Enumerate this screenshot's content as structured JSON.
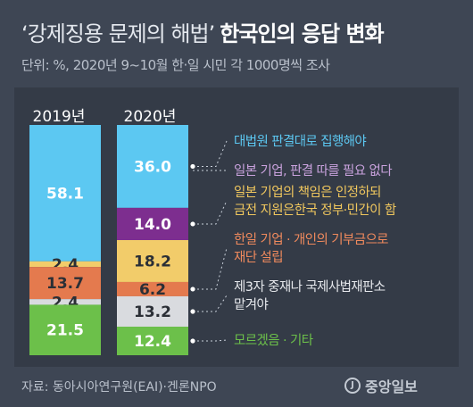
{
  "title": {
    "lead": "‘강제징용 문제의 해법’",
    "main": "한국인의 응답 변화"
  },
  "subtitle": "단위: %, 2020년 9~10월 한·일 시민 각 1000명씩 조사",
  "footer": {
    "source": "자료: 동아시아연구원(EAI)·겐론NPO",
    "logo_text": "중앙일보",
    "logo_mark": "J"
  },
  "chart_data": {
    "type": "bar",
    "stacked": true,
    "categories": [
      "2019년",
      "2020년"
    ],
    "series": [
      {
        "name": "대법원 판결대로 집행해야",
        "values": [
          58.1,
          36.0
        ],
        "value_labels": [
          "58.1",
          "36.0"
        ],
        "color": "#5cc8f2",
        "label_color": "#5cc8f2"
      },
      {
        "name": "일본 기업, 판결 따를 필요 없다",
        "values": [
          0,
          0
        ],
        "value_labels": [
          "",
          ""
        ],
        "color": "#c9a2dd",
        "label_color": "#c9a2dd"
      },
      {
        "name": "일본 기업의 책임은 인정하되 금전 지원은한국 정부·민간이 함",
        "lines": [
          "일본 기업의 책임은 인정하되",
          "금전 지원은한국 정부·민간이 함"
        ],
        "values": [
          0,
          14.0
        ],
        "value_labels": [
          "",
          "14.0"
        ],
        "color": "#7d2e8f",
        "label_color": "#f0c75e"
      },
      {
        "name": "",
        "values": [
          2.4,
          18.2
        ],
        "value_labels": [
          "2.4",
          "18.2"
        ],
        "color": "#f2cc6a",
        "label_color": "#f2cc6a"
      },
      {
        "name": "한일 기업 · 개인의 기부금으로 재단 설립",
        "lines": [
          "한일 기업 · 개인의 기부금으로",
          "재단 설립"
        ],
        "values": [
          13.7,
          6.2
        ],
        "value_labels": [
          "13.7",
          "6.2"
        ],
        "color": "#e47a4e",
        "label_color": "#f08a5d"
      },
      {
        "name": "제3자 중재나 국제사법재판소 맡겨야",
        "lines": [
          "제3자 중재나 국제사법재판소",
          "맡겨야"
        ],
        "values": [
          2.4,
          13.2
        ],
        "value_labels": [
          "2.4",
          "13.2"
        ],
        "color": "#d9dbdf",
        "label_color": "#e6e8ec"
      },
      {
        "name": "모르겠음 · 기타",
        "values": [
          21.5,
          12.4
        ],
        "value_labels": [
          "21.5",
          "12.4"
        ],
        "color": "#6cc04a",
        "label_color": "#6cc04a"
      }
    ],
    "colors": {
      "background": "#3e4654",
      "panel": "#343b47",
      "dark_text": "#2b2f36",
      "light_text": "#ffffff"
    }
  }
}
